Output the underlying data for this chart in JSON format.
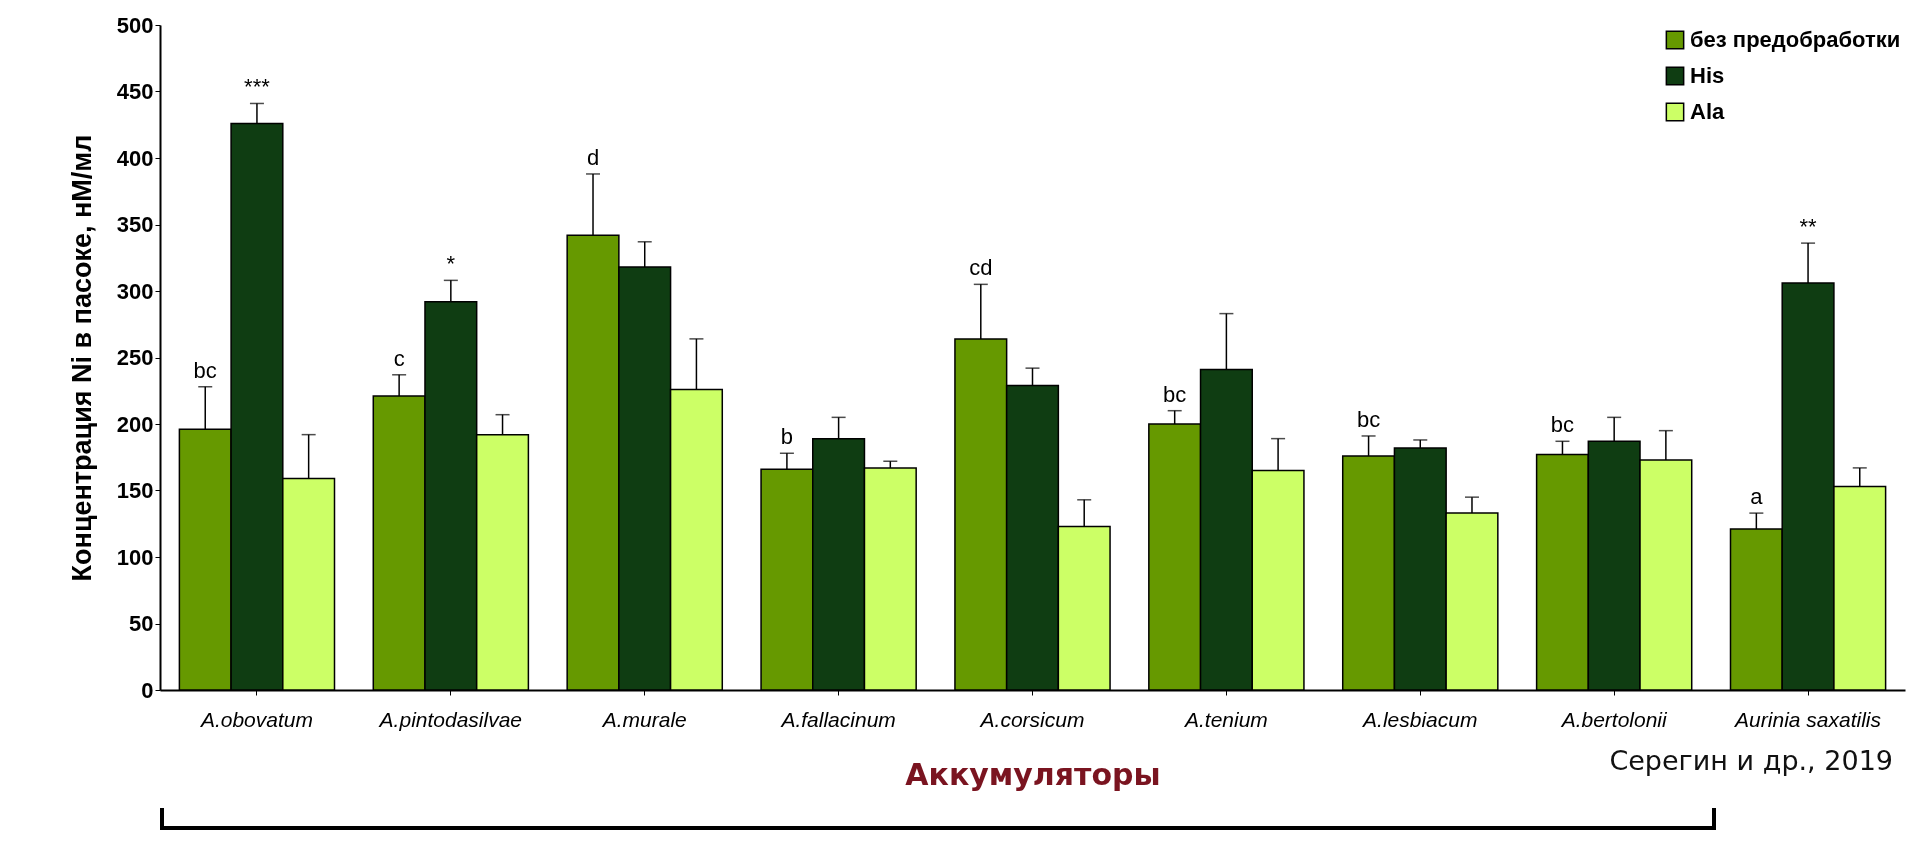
{
  "chart_data": {
    "type": "bar",
    "ylabel": "Концентрация Ni в пасоке, нМ/мл",
    "xlabel": "Аккумуляторы",
    "categories": [
      "A.obovatum",
      "A.pintodasilvae",
      "A.murale",
      "A.fallacinum",
      "A.corsicum",
      "A.tenium",
      "A.lesbiacum",
      "A.bertolonii",
      "Aurinia saxatilis"
    ],
    "series": [
      {
        "name": "без предобработки",
        "color": "#669900",
        "values": [
          196,
          221,
          342,
          166,
          264,
          200,
          176,
          177,
          121
        ],
        "errors": [
          [
            196,
            228
          ],
          [
            221,
            237
          ],
          [
            342,
            388
          ],
          [
            166,
            178
          ],
          [
            264,
            305
          ],
          [
            200,
            210
          ],
          [
            176,
            191
          ],
          [
            177,
            187
          ],
          [
            121,
            133
          ]
        ],
        "value_labels": [
          "bc",
          "c",
          "d",
          "b",
          "cd",
          "bc",
          "bc",
          "bc",
          "a"
        ]
      },
      {
        "name": "His",
        "color": "#0f3d12",
        "values": [
          426,
          292,
          318,
          189,
          229,
          241,
          182,
          187,
          306
        ],
        "errors": [
          [
            426,
            441
          ],
          [
            292,
            308
          ],
          [
            318,
            337
          ],
          [
            189,
            205
          ],
          [
            229,
            242
          ],
          [
            241,
            283
          ],
          [
            182,
            188
          ],
          [
            187,
            205
          ],
          [
            306,
            336
          ]
        ],
        "value_labels": [
          "***",
          "*",
          null,
          null,
          null,
          null,
          null,
          null,
          "**"
        ]
      },
      {
        "name": "Ala",
        "color": "#ccff66",
        "values": [
          159,
          192,
          226,
          167,
          123,
          165,
          133,
          173,
          153
        ],
        "errors": [
          [
            159,
            192
          ],
          [
            192,
            207
          ],
          [
            226,
            264
          ],
          [
            167,
            172
          ],
          [
            123,
            143
          ],
          [
            165,
            189
          ],
          [
            133,
            145
          ],
          [
            173,
            195
          ],
          [
            153,
            167
          ]
        ]
      }
    ],
    "ylim": [
      0,
      500
    ],
    "yticks": [
      0,
      50,
      100,
      150,
      200,
      250,
      300,
      350,
      400,
      450,
      500
    ],
    "grid": false,
    "legend": "top right",
    "annotations": [
      "Серегин и др., 2019"
    ]
  }
}
